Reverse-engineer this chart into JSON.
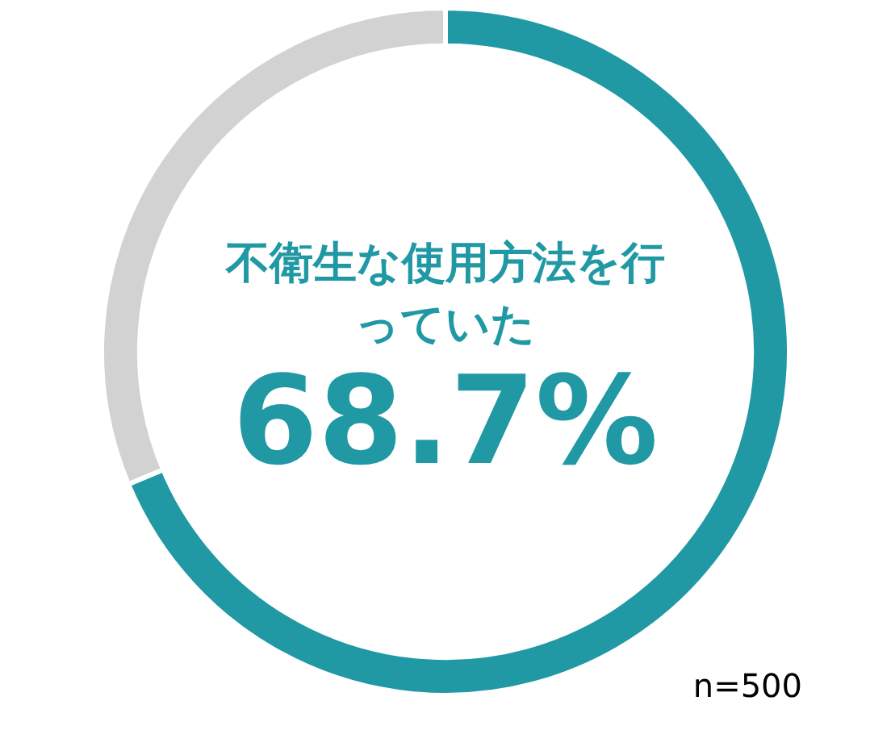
{
  "chart_data": {
    "type": "donut",
    "categories": [
      "不衛生な使用方法を行っていた",
      null
    ],
    "values": [
      68.7,
      31.3
    ],
    "colors": [
      "#2199a4",
      "#d3d2d3"
    ],
    "value_labels": [
      "68.7%",
      null
    ],
    "annotations": [
      "n=500"
    ]
  }
}
